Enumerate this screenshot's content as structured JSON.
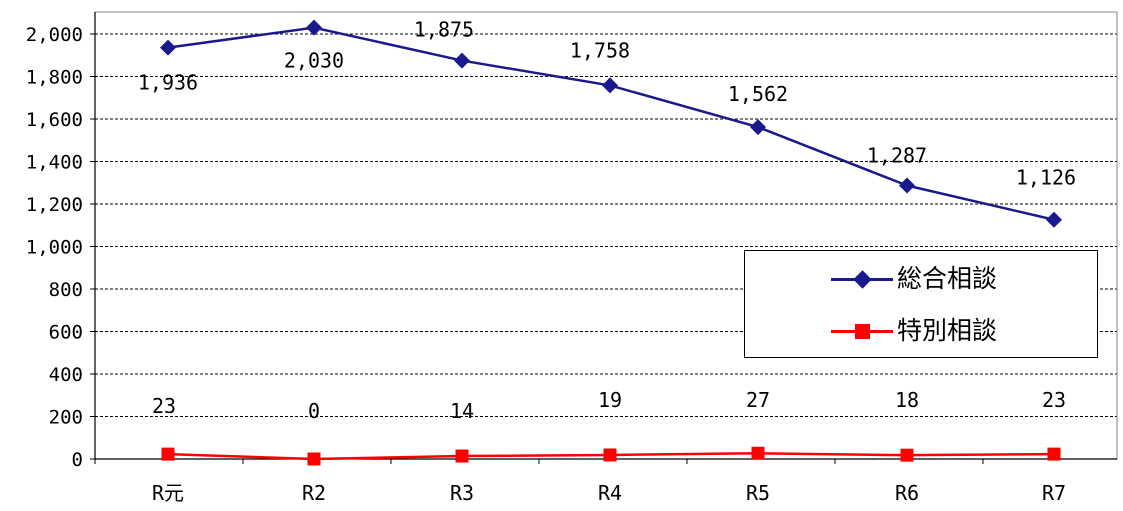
{
  "chart_data": {
    "type": "line",
    "categories": [
      "R元",
      "R2",
      "R3",
      "R4",
      "R5",
      "R6",
      "R7"
    ],
    "ylim": [
      0,
      2000
    ],
    "yticks": [
      0,
      200,
      400,
      600,
      800,
      1000,
      1200,
      1400,
      1600,
      1800,
      2000
    ],
    "ytick_labels": [
      "0",
      "200",
      "400",
      "600",
      "800",
      "1,000",
      "1,200",
      "1,400",
      "1,600",
      "1,800",
      "2,000"
    ],
    "grid": "horizontal dashed",
    "legend_position": "right",
    "series": [
      {
        "name": "総合相談",
        "color": "#1a1a8c",
        "marker": "diamond",
        "values": [
          1936,
          2030,
          1875,
          1758,
          1562,
          1287,
          1126
        ],
        "labels": [
          "1,936",
          "2,030",
          "1,875",
          "1,758",
          "1,562",
          "1,287",
          "1,126"
        ]
      },
      {
        "name": "特別相談",
        "color": "#ff0000",
        "marker": "square",
        "values": [
          23,
          0,
          14,
          19,
          27,
          18,
          23
        ],
        "labels": [
          "23",
          "0",
          "14",
          "19",
          "27",
          "18",
          "23"
        ]
      }
    ]
  }
}
